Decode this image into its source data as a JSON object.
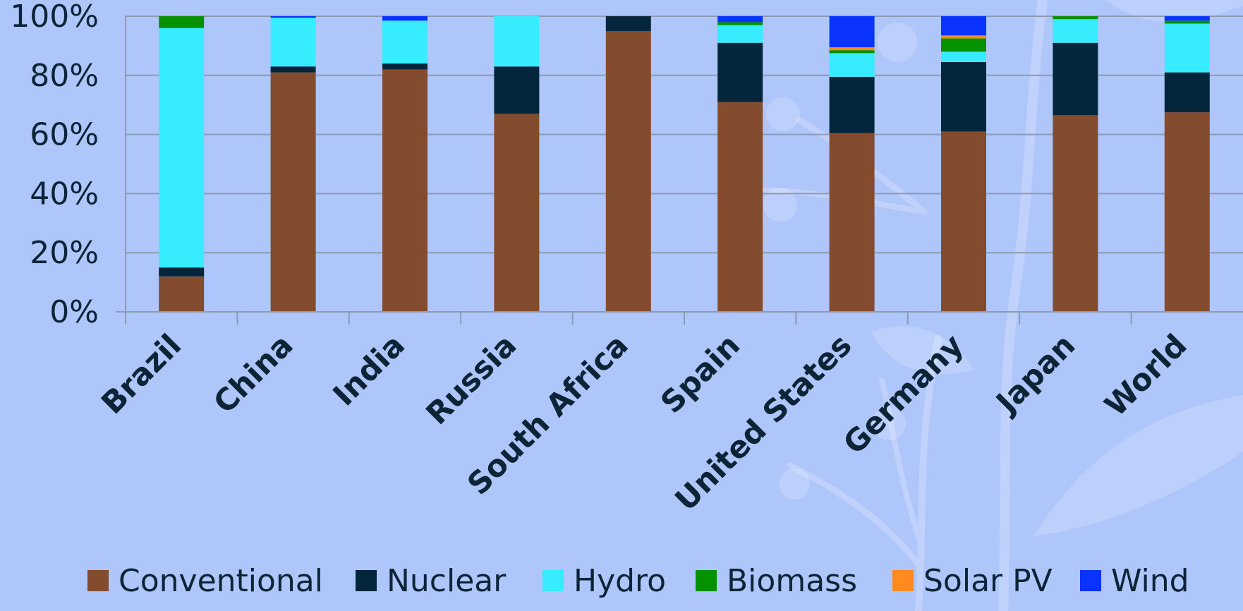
{
  "chart_data": {
    "type": "bar",
    "stacked": true,
    "categories": [
      "Brazil",
      "China",
      "India",
      "Russia",
      "South Africa",
      "Spain",
      "United States",
      "Germany",
      "Japan",
      "World"
    ],
    "series": [
      {
        "name": "Conventional",
        "color": "#844c2e",
        "values": [
          12,
          81,
          82,
          67,
          95,
          71,
          60.5,
          61,
          66.5,
          67.5
        ]
      },
      {
        "name": "Nuclear",
        "color": "#03263d",
        "values": [
          3,
          2,
          2,
          16,
          5,
          20,
          19,
          23.5,
          24.5,
          13.5
        ]
      },
      {
        "name": "Hydro",
        "color": "#38ecff",
        "values": [
          81,
          16.5,
          14.5,
          17,
          0,
          6,
          8,
          3.5,
          8,
          16.5
        ]
      },
      {
        "name": "Biomass",
        "color": "#069100",
        "values": [
          4,
          0,
          0,
          0,
          0,
          1,
          1,
          4.5,
          1,
          1
        ]
      },
      {
        "name": "Solar PV",
        "color": "#ff8a1f",
        "values": [
          0,
          0,
          0,
          0,
          0,
          0,
          1,
          1,
          0,
          0
        ]
      },
      {
        "name": "Wind",
        "color": "#0a33ff",
        "values": [
          0,
          0.5,
          1.5,
          0,
          0,
          2,
          10.5,
          6.5,
          0,
          1.5
        ]
      }
    ],
    "yticks": [
      "0%",
      "20%",
      "40%",
      "60%",
      "80%",
      "100%"
    ],
    "ylim": [
      0,
      100
    ],
    "grid": true,
    "legend_position": "bottom"
  }
}
